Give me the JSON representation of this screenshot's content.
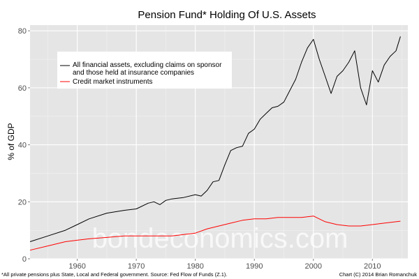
{
  "chart_data": {
    "type": "line",
    "title": "Pension Fund* Holding Of U.S. Assets",
    "ylabel": "% of GDP",
    "xlabel": "",
    "xlim": [
      1952,
      2016
    ],
    "ylim": [
      0,
      82
    ],
    "x_ticks": [
      1960,
      1970,
      1980,
      1990,
      2000,
      2010
    ],
    "y_ticks": [
      0,
      20,
      40,
      60,
      80
    ],
    "grid": true,
    "legend_position": "top-left",
    "series": [
      {
        "name": "All financial assets, excluding claims on sponsor and those held at insurance companies",
        "color": "#000000",
        "x": [
          1952,
          1955,
          1958,
          1960,
          1962,
          1965,
          1968,
          1970,
          1972,
          1973,
          1974,
          1975,
          1976,
          1978,
          1980,
          1981,
          1982,
          1983,
          1984,
          1985,
          1986,
          1987,
          1988,
          1989,
          1990,
          1991,
          1992,
          1993,
          1994,
          1995,
          1996,
          1997,
          1998,
          1999,
          2000,
          2001,
          2002,
          2003,
          2004,
          2005,
          2006,
          2007,
          2008,
          2009,
          2010,
          2011,
          2012,
          2013,
          2014,
          2014.75
        ],
        "y": [
          6,
          8,
          10,
          12,
          14,
          16,
          17,
          17.5,
          19.5,
          20,
          19,
          20.5,
          21,
          21.5,
          22.5,
          22,
          24,
          27,
          27.5,
          33,
          38,
          39,
          39.5,
          44,
          45.5,
          49,
          51,
          53,
          53.5,
          55,
          59,
          63,
          69,
          74,
          77,
          70,
          64,
          58,
          64,
          66,
          69,
          73,
          60,
          54,
          66,
          62,
          68,
          71,
          73,
          78
        ]
      },
      {
        "name": "Credit market instruments",
        "color": "#ff0000",
        "x": [
          1952,
          1955,
          1958,
          1960,
          1962,
          1965,
          1968,
          1970,
          1972,
          1974,
          1976,
          1978,
          1980,
          1982,
          1984,
          1986,
          1988,
          1990,
          1992,
          1994,
          1996,
          1998,
          2000,
          2001,
          2002,
          2004,
          2006,
          2008,
          2010,
          2012,
          2014,
          2014.75
        ],
        "y": [
          3,
          4.5,
          6,
          6.5,
          7,
          7.5,
          8,
          8,
          8,
          8,
          8,
          8.5,
          9,
          10.5,
          11.5,
          12.5,
          13.5,
          14,
          14,
          14.5,
          14.5,
          14.5,
          15,
          14,
          13,
          12,
          11.5,
          11.5,
          12,
          12.5,
          13,
          13.2
        ]
      }
    ]
  },
  "watermark": "bondeconomics.com",
  "footnote_left": "*All private pensions plus State, Local and Federal government. Source: Fed Flow of Funds (Z.1).",
  "footnote_right": "Chart (C) 2014 Brian Romanchuk"
}
